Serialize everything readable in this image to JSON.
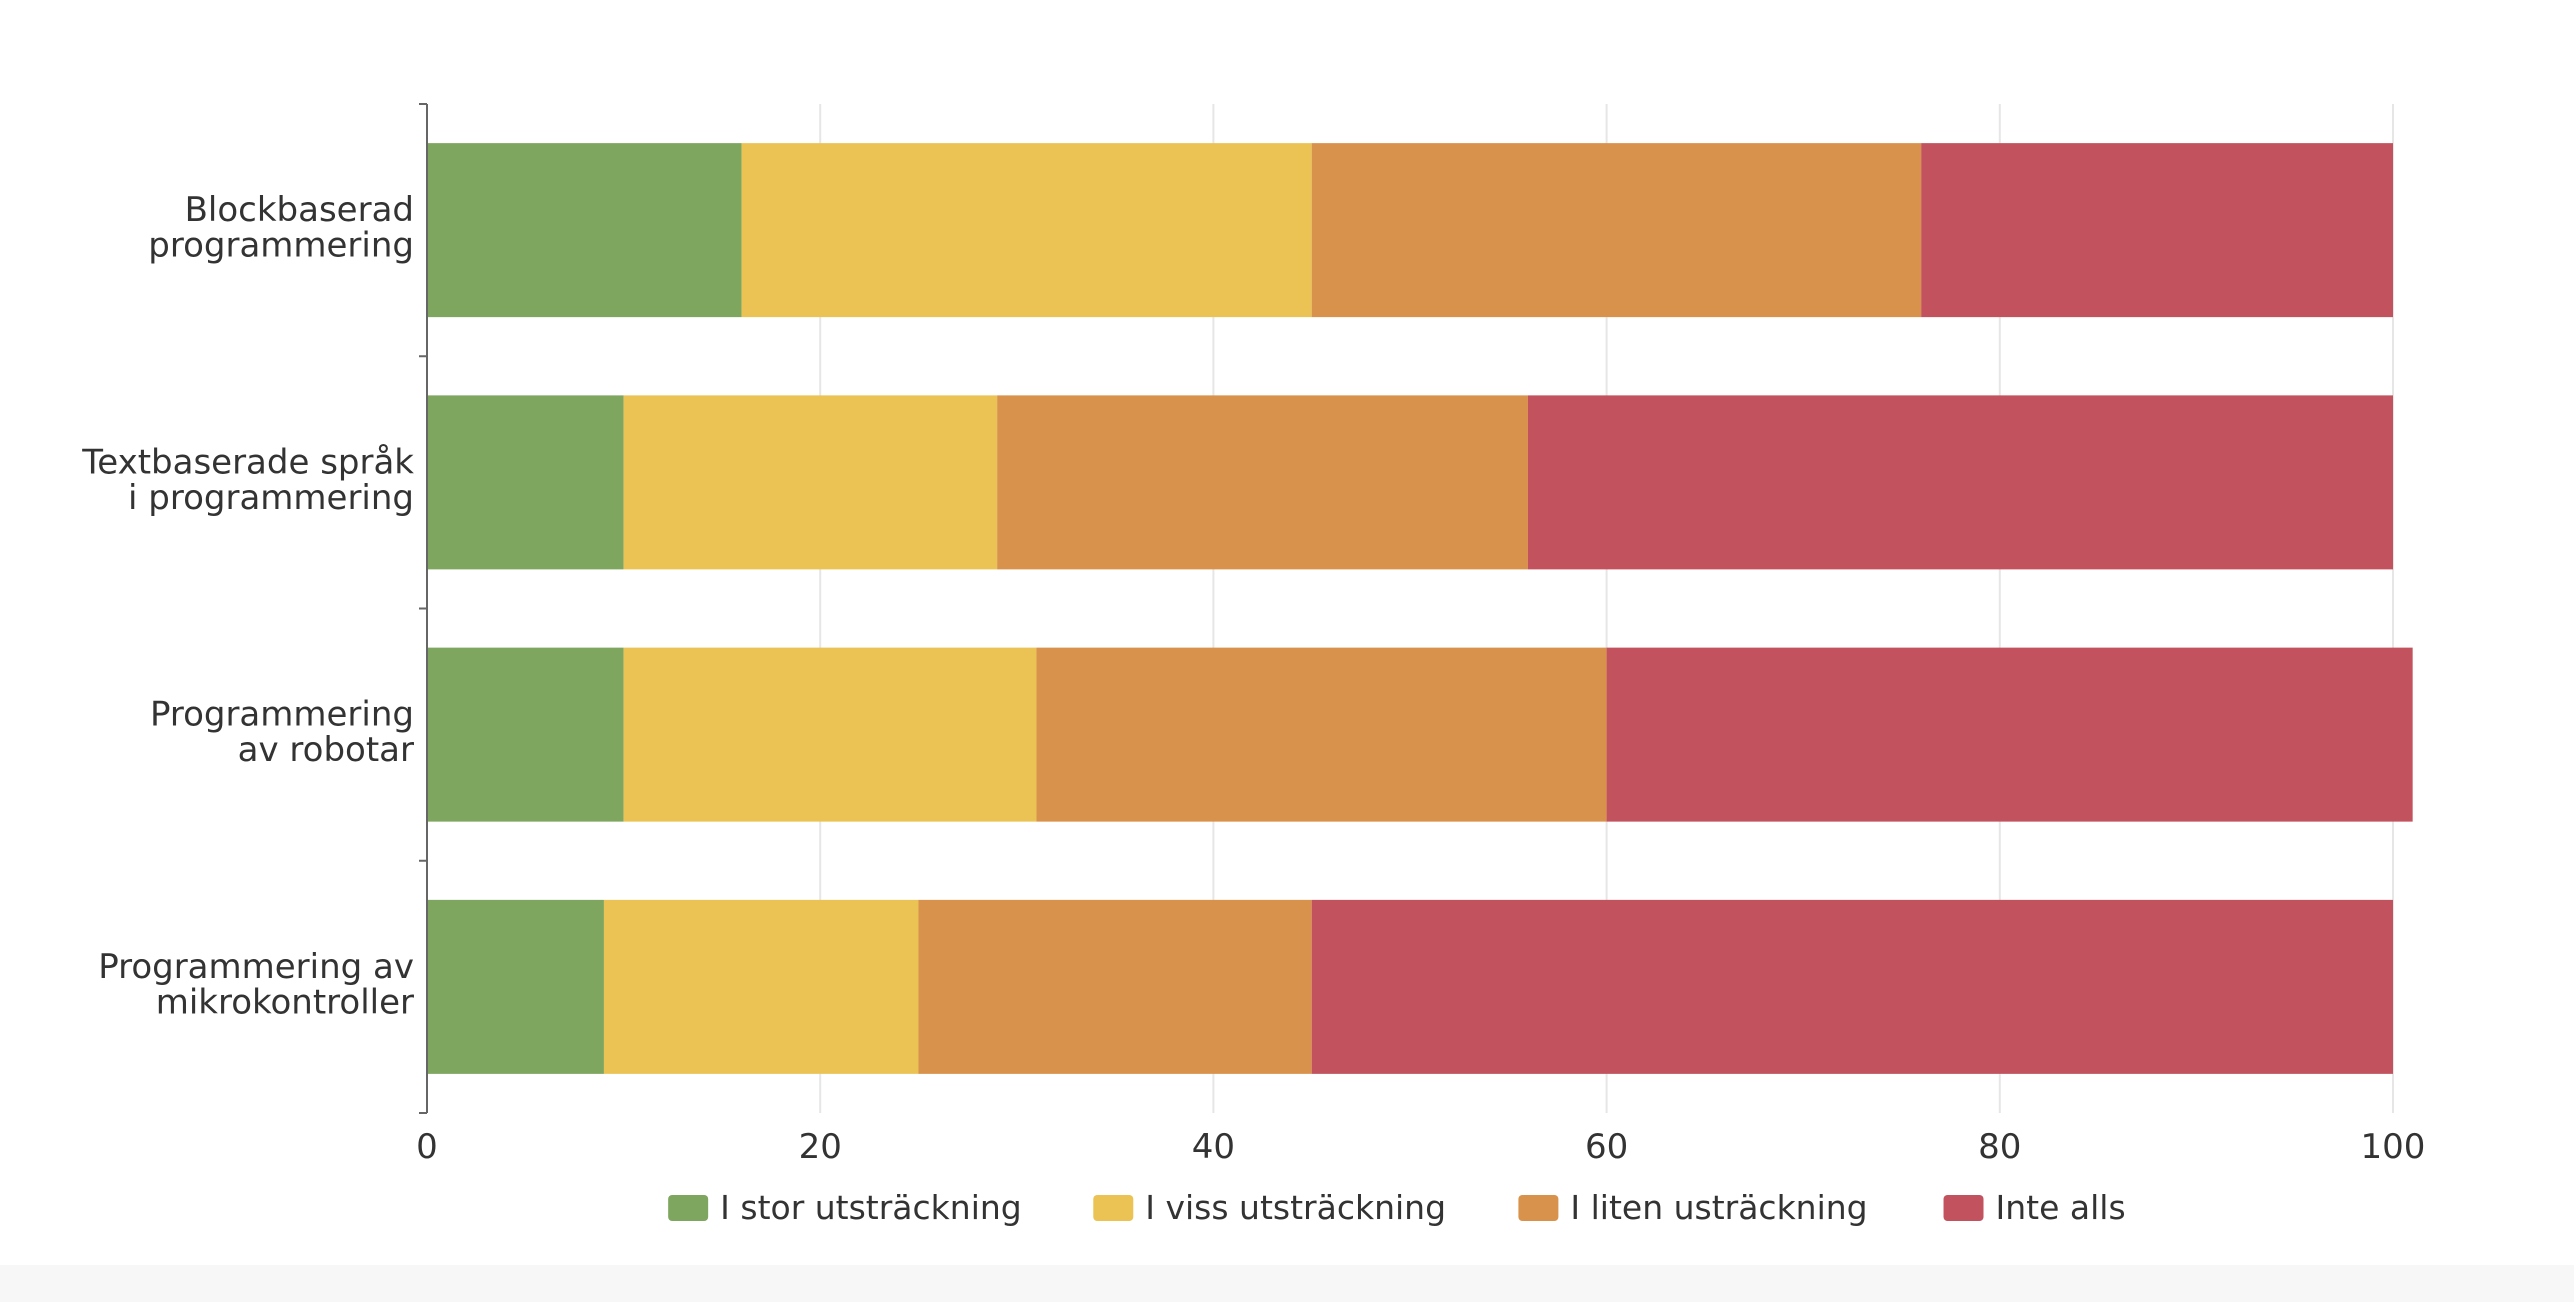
{
  "chart_data": {
    "type": "bar",
    "orientation": "horizontal",
    "stacked": true,
    "categories": [
      [
        "Blockbaserad",
        "programmering"
      ],
      [
        "Textbaserade språk",
        "i programmering"
      ],
      [
        "Programmering",
        "av robotar"
      ],
      [
        "Programmering av",
        "mikrokontroller"
      ]
    ],
    "series": [
      {
        "name": "I stor utsträckning",
        "color": "#7ea65f",
        "values": [
          16,
          10,
          10,
          9
        ]
      },
      {
        "name": "I viss utsträckning",
        "color": "#ebc354",
        "values": [
          29,
          19,
          21,
          16
        ]
      },
      {
        "name": "I liten usträckning",
        "color": "#d9924b",
        "values": [
          31,
          27,
          29,
          20
        ]
      },
      {
        "name": "Inte alls",
        "color": "#c2535e",
        "values": [
          24,
          44,
          41,
          55
        ]
      }
    ],
    "xlim": [
      0,
      100
    ],
    "xticks": [
      "0",
      "20",
      "40",
      "60",
      "80",
      "100"
    ],
    "grid": true,
    "legend_position": "bottom"
  }
}
